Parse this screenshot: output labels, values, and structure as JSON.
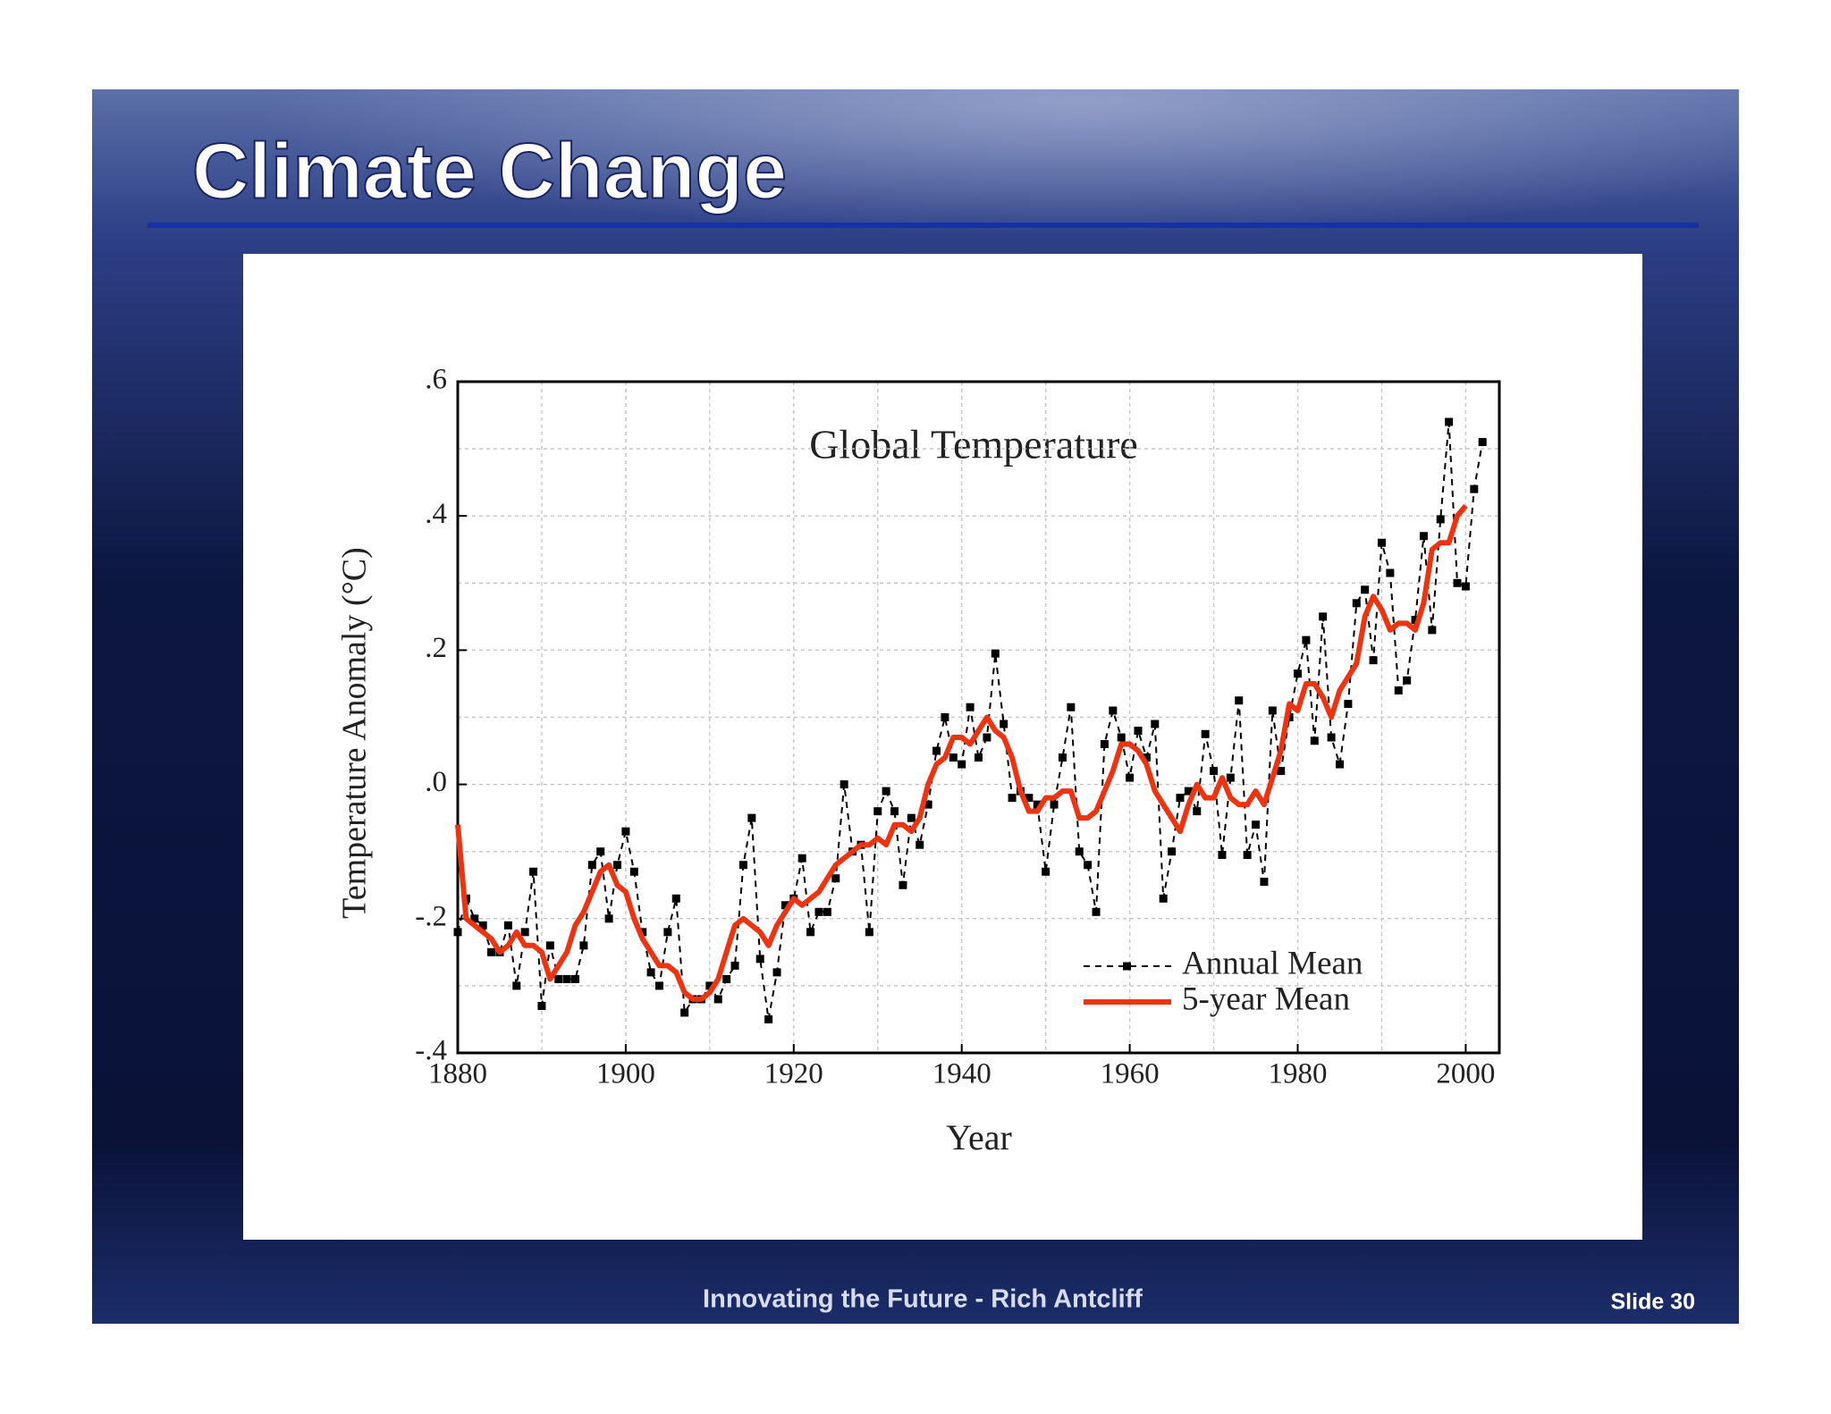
{
  "slide": {
    "title": "Climate Change",
    "footer": "Innovating the Future - Rich Antcliff",
    "number": "Slide 30"
  },
  "chart_data": {
    "type": "line",
    "title": "Global Temperature",
    "x_label": "Year",
    "y_label": "Temperature Anomaly (°C)",
    "x": [
      1880,
      1881,
      1882,
      1883,
      1884,
      1885,
      1886,
      1887,
      1888,
      1889,
      1890,
      1891,
      1892,
      1893,
      1894,
      1895,
      1896,
      1897,
      1898,
      1899,
      1900,
      1901,
      1902,
      1903,
      1904,
      1905,
      1906,
      1907,
      1908,
      1909,
      1910,
      1911,
      1912,
      1913,
      1914,
      1915,
      1916,
      1917,
      1918,
      1919,
      1920,
      1921,
      1922,
      1923,
      1924,
      1925,
      1926,
      1927,
      1928,
      1929,
      1930,
      1931,
      1932,
      1933,
      1934,
      1935,
      1936,
      1937,
      1938,
      1939,
      1940,
      1941,
      1942,
      1943,
      1944,
      1945,
      1946,
      1947,
      1948,
      1949,
      1950,
      1951,
      1952,
      1953,
      1954,
      1955,
      1956,
      1957,
      1958,
      1959,
      1960,
      1961,
      1962,
      1963,
      1964,
      1965,
      1966,
      1967,
      1968,
      1969,
      1970,
      1971,
      1972,
      1973,
      1974,
      1975,
      1976,
      1977,
      1978,
      1979,
      1980,
      1981,
      1982,
      1983,
      1984,
      1985,
      1986,
      1987,
      1988,
      1989,
      1990,
      1991,
      1992,
      1993,
      1994,
      1995,
      1996,
      1997,
      1998,
      1999,
      2000,
      2001,
      2002
    ],
    "series": [
      {
        "name": "Annual Mean",
        "color": "#000000",
        "line_style": "dashed",
        "marker": "square",
        "values": [
          -0.22,
          -0.17,
          -0.2,
          -0.21,
          -0.25,
          -0.25,
          -0.21,
          -0.3,
          -0.22,
          -0.13,
          -0.33,
          -0.24,
          -0.29,
          -0.29,
          -0.29,
          -0.24,
          -0.12,
          -0.1,
          -0.2,
          -0.12,
          -0.07,
          -0.13,
          -0.22,
          -0.28,
          -0.3,
          -0.22,
          -0.17,
          -0.34,
          -0.32,
          -0.32,
          -0.3,
          -0.32,
          -0.29,
          -0.27,
          -0.12,
          -0.05,
          -0.26,
          -0.35,
          -0.28,
          -0.18,
          -0.17,
          -0.11,
          -0.22,
          -0.19,
          -0.19,
          -0.14,
          0.0,
          -0.1,
          -0.09,
          -0.22,
          -0.04,
          -0.01,
          -0.04,
          -0.15,
          -0.05,
          -0.09,
          -0.03,
          0.05,
          0.1,
          0.04,
          0.03,
          0.115,
          0.04,
          0.07,
          0.195,
          0.09,
          -0.02,
          -0.01,
          -0.02,
          -0.03,
          -0.13,
          -0.03,
          0.04,
          0.115,
          -0.1,
          -0.12,
          -0.19,
          0.06,
          0.11,
          0.07,
          0.01,
          0.08,
          0.04,
          0.09,
          -0.17,
          -0.1,
          -0.02,
          -0.01,
          -0.04,
          0.075,
          0.02,
          -0.105,
          0.01,
          0.125,
          -0.105,
          -0.06,
          -0.145,
          0.11,
          0.02,
          0.1,
          0.165,
          0.215,
          0.065,
          0.25,
          0.07,
          0.03,
          0.12,
          0.27,
          0.29,
          0.185,
          0.36,
          0.315,
          0.14,
          0.155,
          0.245,
          0.37,
          0.23,
          0.395,
          0.54,
          0.3,
          0.295,
          0.44,
          0.51
        ]
      },
      {
        "name": "5-year Mean",
        "color": "#ee3311",
        "line_style": "solid",
        "values": [
          -0.06,
          -0.2,
          -0.21,
          -0.22,
          -0.23,
          -0.25,
          -0.24,
          -0.22,
          -0.24,
          -0.24,
          -0.25,
          -0.29,
          -0.27,
          -0.25,
          -0.21,
          -0.19,
          -0.16,
          -0.13,
          -0.12,
          -0.15,
          -0.16,
          -0.2,
          -0.23,
          -0.25,
          -0.27,
          -0.27,
          -0.28,
          -0.31,
          -0.32,
          -0.32,
          -0.31,
          -0.29,
          -0.25,
          -0.21,
          -0.2,
          -0.21,
          -0.22,
          -0.24,
          -0.21,
          -0.19,
          -0.17,
          -0.18,
          -0.17,
          -0.16,
          -0.14,
          -0.12,
          -0.11,
          -0.1,
          -0.09,
          -0.09,
          -0.08,
          -0.09,
          -0.06,
          -0.06,
          -0.07,
          -0.05,
          0.0,
          0.03,
          0.04,
          0.07,
          0.07,
          0.06,
          0.08,
          0.1,
          0.08,
          0.07,
          0.04,
          -0.01,
          -0.04,
          -0.04,
          -0.02,
          -0.02,
          -0.01,
          -0.01,
          -0.05,
          -0.05,
          -0.04,
          -0.01,
          0.02,
          0.06,
          0.06,
          0.05,
          0.03,
          -0.01,
          -0.03,
          -0.05,
          -0.07,
          -0.03,
          0.0,
          -0.02,
          -0.02,
          0.01,
          -0.02,
          -0.03,
          -0.03,
          -0.01,
          -0.03,
          0.01,
          0.05,
          0.12,
          0.11,
          0.15,
          0.15,
          0.13,
          0.1,
          0.14,
          0.16,
          0.18,
          0.25,
          0.28,
          0.26,
          0.23,
          0.24,
          0.24,
          0.23,
          0.27,
          0.35,
          0.36,
          0.36,
          0.4,
          0.415,
          null,
          null
        ]
      }
    ],
    "xlim": [
      1880,
      2004
    ],
    "ylim": [
      -0.4,
      0.6
    ],
    "xticks": [
      1880,
      1900,
      1920,
      1940,
      1960,
      1980,
      2000
    ],
    "yticks": [
      {
        "value": 0.6,
        "label": ".6"
      },
      {
        "value": 0.4,
        "label": ".4"
      },
      {
        "value": 0.2,
        "label": ".2"
      },
      {
        "value": 0,
        "label": ".0"
      },
      {
        "value": -0.2,
        "label": "-.2"
      },
      {
        "value": -0.4,
        "label": "-.4"
      }
    ],
    "minor_xticks": [
      1890,
      1910,
      1930,
      1950,
      1970,
      1990
    ],
    "minor_yticks": [
      0.5,
      0.3,
      0.1,
      -0.1,
      -0.3
    ],
    "grid": true,
    "legend": "lower right"
  }
}
